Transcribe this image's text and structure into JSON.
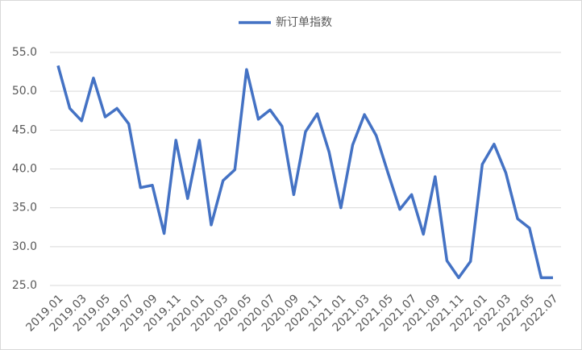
{
  "chart_data": {
    "type": "line",
    "categories": [
      "2019.01",
      null,
      "2019.03",
      null,
      "2019.05",
      null,
      "2019.07",
      null,
      "2019.09",
      null,
      "2019.11",
      null,
      "2020.01",
      null,
      "2020.03",
      null,
      "2020.05",
      null,
      "2020.07",
      null,
      "2020.09",
      null,
      "2020.11",
      null,
      "2021.01",
      null,
      "2021.03",
      null,
      "2021.05",
      null,
      "2021.07",
      null,
      "2021.09",
      null,
      "2021.11",
      null,
      "2022.01",
      null,
      "2022.03",
      null,
      "2022.05",
      null,
      "2022.07"
    ],
    "series": [
      {
        "name": "新订单指数",
        "color": "#4472c4",
        "values": [
          53.3,
          47.8,
          46.2,
          51.7,
          46.7,
          47.8,
          45.8,
          37.6,
          37.9,
          31.7,
          43.7,
          36.2,
          43.7,
          32.8,
          38.5,
          39.9,
          52.8,
          46.4,
          47.6,
          45.5,
          36.7,
          44.8,
          47.1,
          42.2,
          35.0,
          43.1,
          47.0,
          44.3,
          39.5,
          34.8,
          36.7,
          31.6,
          39.0,
          28.2,
          26.0,
          28.1,
          40.6,
          43.2,
          39.5,
          33.6,
          32.4,
          26.0,
          26.0
        ]
      }
    ],
    "ylim": [
      25,
      55
    ],
    "yticks": [
      {
        "value": 25,
        "label": "25.0"
      },
      {
        "value": 30,
        "label": "30.0"
      },
      {
        "value": 35,
        "label": "35.0"
      },
      {
        "value": 40,
        "label": "40.0"
      },
      {
        "value": 45,
        "label": "45.0"
      },
      {
        "value": 50,
        "label": "50.0"
      },
      {
        "value": 55,
        "label": "55.0"
      }
    ],
    "grid": true,
    "legend": "top"
  }
}
